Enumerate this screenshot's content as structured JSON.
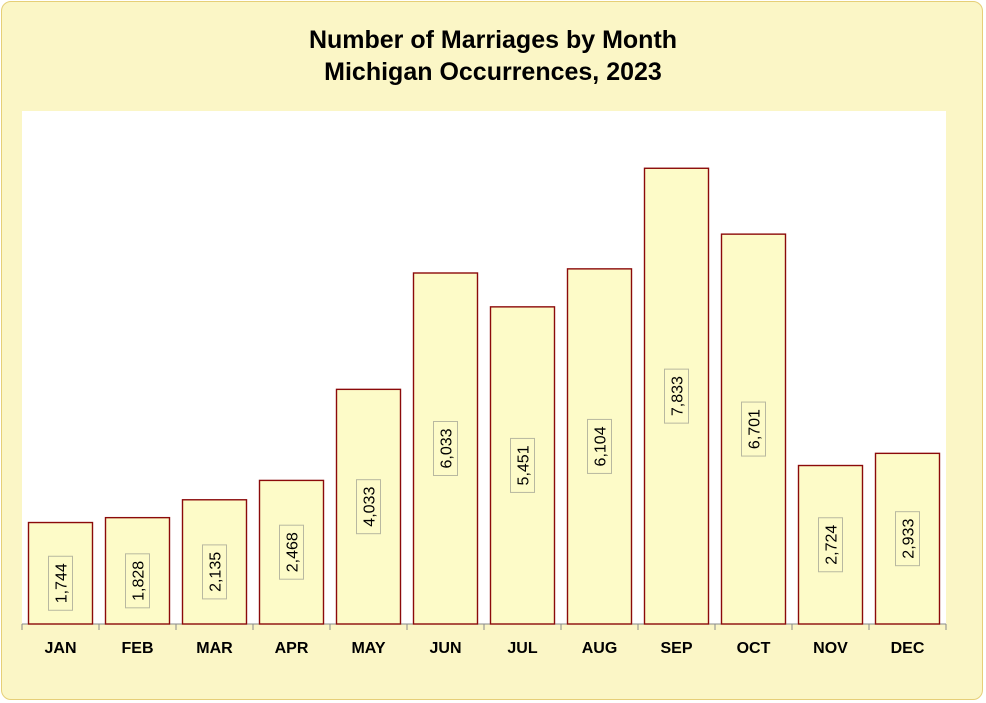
{
  "chart_data": {
    "type": "bar",
    "title": "Number of Marriages by Month",
    "subtitle": "Michigan Occurrences, 2023",
    "categories": [
      "JAN",
      "FEB",
      "MAR",
      "APR",
      "MAY",
      "JUN",
      "JUL",
      "AUG",
      "SEP",
      "OCT",
      "NOV",
      "DEC"
    ],
    "values": [
      1744,
      1828,
      2135,
      2468,
      4033,
      6033,
      5451,
      6104,
      7833,
      6701,
      2724,
      2933
    ],
    "value_labels": [
      "1,744",
      "1,828",
      "2,135",
      "2,468",
      "4,033",
      "6,033",
      "5,451",
      "6,104",
      "7,833",
      "6,701",
      "2,724",
      "2,933"
    ],
    "xlabel": "",
    "ylabel": "",
    "ylim": [
      0,
      9000
    ],
    "grid": false,
    "colors": {
      "bar_fill": "#fdfbc8",
      "bar_stroke": "#8b0a0a",
      "plot_background": "#ffffff",
      "frame_background": "#fbf6c6",
      "frame_border": "#e6cf78"
    }
  }
}
